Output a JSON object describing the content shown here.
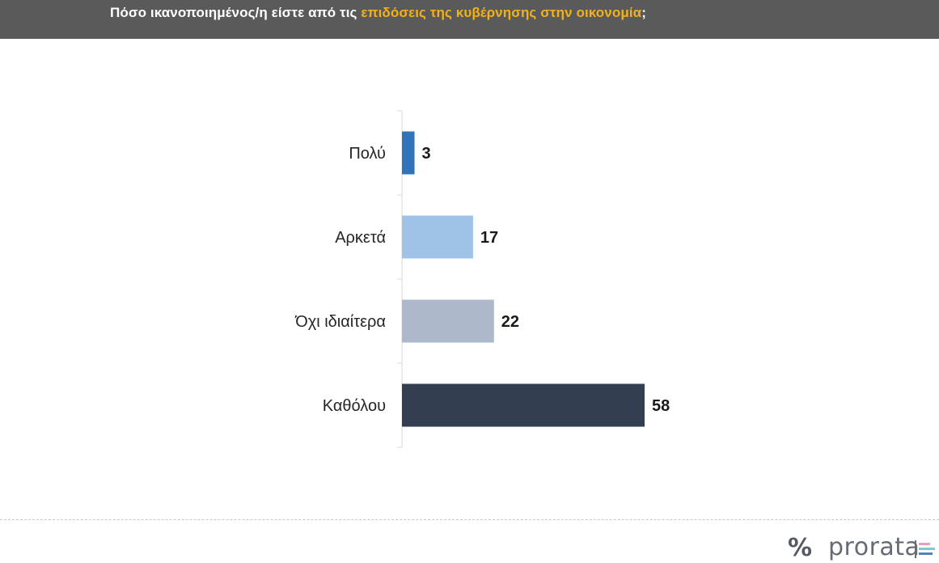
{
  "header": {
    "title_prefix": "Πόσο ικανοποιημένος/η είστε από τις ",
    "title_highlight": "επιδόσεις της κυβέρνησης στην οικονομία",
    "title_suffix": ";"
  },
  "colors": {
    "header_bg": "#5a5a5a",
    "highlight": "#f2b01e",
    "bars": [
      "#2f73b8",
      "#9fc3e6",
      "#adb9ca",
      "#333f50"
    ]
  },
  "chart_data": {
    "type": "bar",
    "orientation": "horizontal",
    "categories": [
      "Πολύ",
      "Αρκετά",
      "Όχι ιδιαίτερα",
      "Καθόλου"
    ],
    "values": [
      3,
      17,
      22,
      58
    ],
    "data_labels": [
      "3",
      "17",
      "22",
      "58"
    ],
    "xlim": [
      0,
      100
    ],
    "grid": false,
    "legend": "none"
  },
  "logo": {
    "symbol": "%",
    "brand": "prorata"
  }
}
